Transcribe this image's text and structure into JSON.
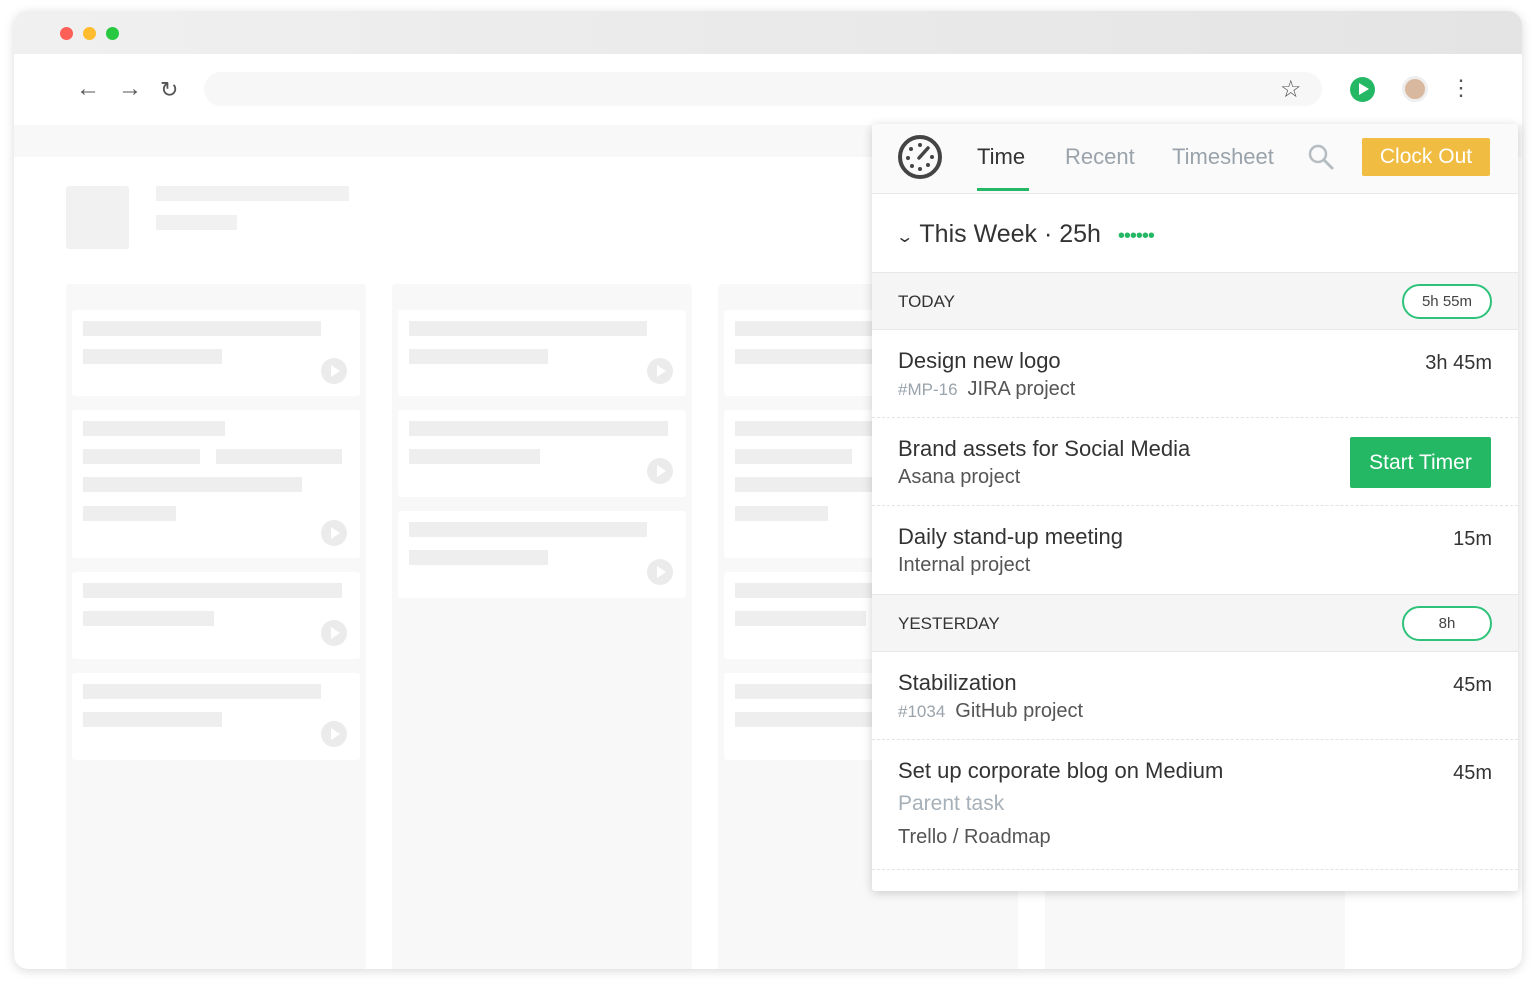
{
  "browser": {
    "traffic_lights": [
      "#fe5f57",
      "#febc2e",
      "#28c840"
    ]
  },
  "panel": {
    "tabs": [
      {
        "label": "Time",
        "active": true
      },
      {
        "label": "Recent"
      },
      {
        "label": "Timesheet"
      }
    ],
    "clock_out": "Clock Out",
    "week": {
      "label": "This Week · 25h",
      "dots": "••••••"
    },
    "accent": "#24b865",
    "clock_out_color": "#f0bc42",
    "sections": [
      {
        "label": "TODAY",
        "total": "5h 55m"
      },
      {
        "label": "YESTERDAY",
        "total": "8h"
      }
    ],
    "entries": [
      {
        "title": "Design new logo",
        "id": "#MP-16",
        "project": "JIRA project",
        "duration": "3h 45m"
      },
      {
        "title": "Brand assets for Social Media",
        "project": "Asana project",
        "action": "Start Timer"
      },
      {
        "title": "Daily stand-up meeting",
        "project": "Internal project",
        "duration": "15m"
      },
      {
        "title": "Stabilization",
        "id": "#1034",
        "project": "GitHub project",
        "duration": "45m"
      },
      {
        "title": "Set up corporate blog on Medium",
        "parent": "Parent task",
        "project": "Trello / Roadmap",
        "duration": "45m"
      }
    ]
  }
}
